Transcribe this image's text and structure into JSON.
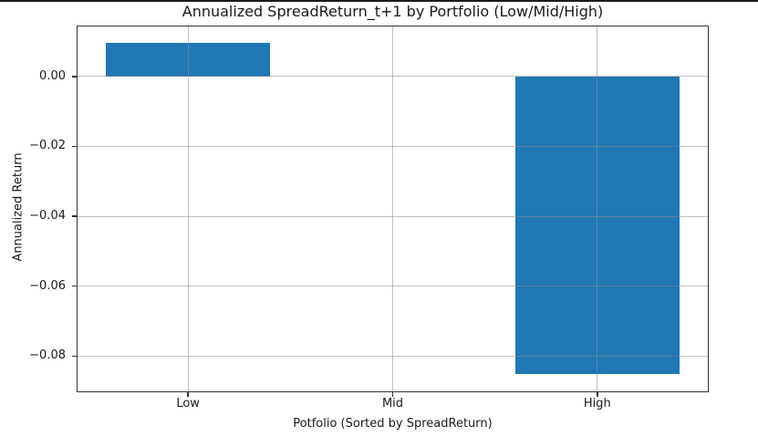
{
  "window": {
    "top_border_color": "#1a1a1a",
    "background": "#ffffff"
  },
  "chart_data": {
    "type": "bar",
    "title": "Annualized SpreadReturn_t+1 by Portfolio (Low/Mid/High)",
    "xlabel": "Potfolio (Sorted by SpreadReturn)",
    "ylabel": "Annualized Return",
    "categories": [
      "Low",
      "Mid",
      "High"
    ],
    "values": [
      0.0096,
      0.0,
      -0.0851
    ],
    "bar_color": "#1f77b4",
    "bar_width_fraction": 0.8,
    "xlim": [
      -0.54,
      2.54
    ],
    "ylim": [
      -0.0901,
      0.0143
    ],
    "yticks": [
      0.0,
      -0.02,
      -0.04,
      -0.06,
      -0.08
    ],
    "ytick_labels": [
      "0.00",
      "−0.02",
      "−0.04",
      "−0.06",
      "−0.08"
    ],
    "grid": true,
    "grid_on_top_of_bars": true,
    "grid_color": "rgba(140,140,140,0.55)",
    "axis_color": "#333333",
    "tick_color": "#333333",
    "text_color": "#1a1a1a",
    "legend_position": "none",
    "plot_background": "#ffffff"
  }
}
